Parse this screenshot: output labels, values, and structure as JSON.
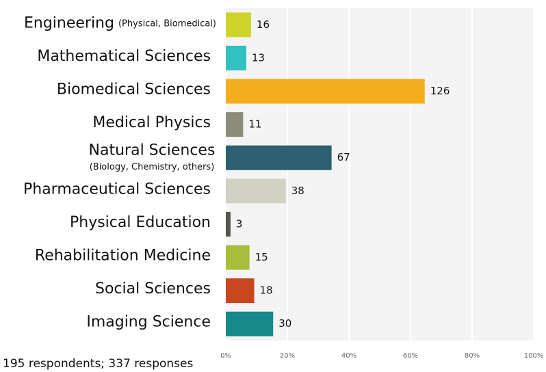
{
  "chart_data": {
    "type": "bar",
    "orientation": "horizontal",
    "categories": [
      "Engineering",
      "Mathematical Sciences",
      "Biomedical Sciences",
      "Medical Physics",
      "Natural Sciences",
      "Pharmaceutical Sciences",
      "Physical Education",
      "Rehabilitation Medicine",
      "Social Sciences",
      "Imaging Science"
    ],
    "category_notes": [
      "(Physical, Biomedical)",
      null,
      null,
      null,
      "(Biology, Chemistry, others)",
      null,
      null,
      null,
      null,
      null
    ],
    "values": [
      16,
      13,
      126,
      11,
      67,
      38,
      3,
      15,
      18,
      30
    ],
    "colors": [
      "#cfd42a",
      "#33c0c0",
      "#f6ae1f",
      "#8c8c7d",
      "#2c5f6f",
      "#d1d1c4",
      "#555550",
      "#a8bd3a",
      "#c8471e",
      "#16898b"
    ],
    "xlim": [
      0,
      195
    ],
    "xticks": [
      {
        "value": 0,
        "label": "0%"
      },
      {
        "value": 39,
        "label": "20%"
      },
      {
        "value": 78,
        "label": "40%"
      },
      {
        "value": 117,
        "label": "60%"
      },
      {
        "value": 156,
        "label": "80%"
      },
      {
        "value": 195,
        "label": "100%"
      }
    ],
    "grid": true,
    "footnote": "195 respondents; 337 responses"
  }
}
